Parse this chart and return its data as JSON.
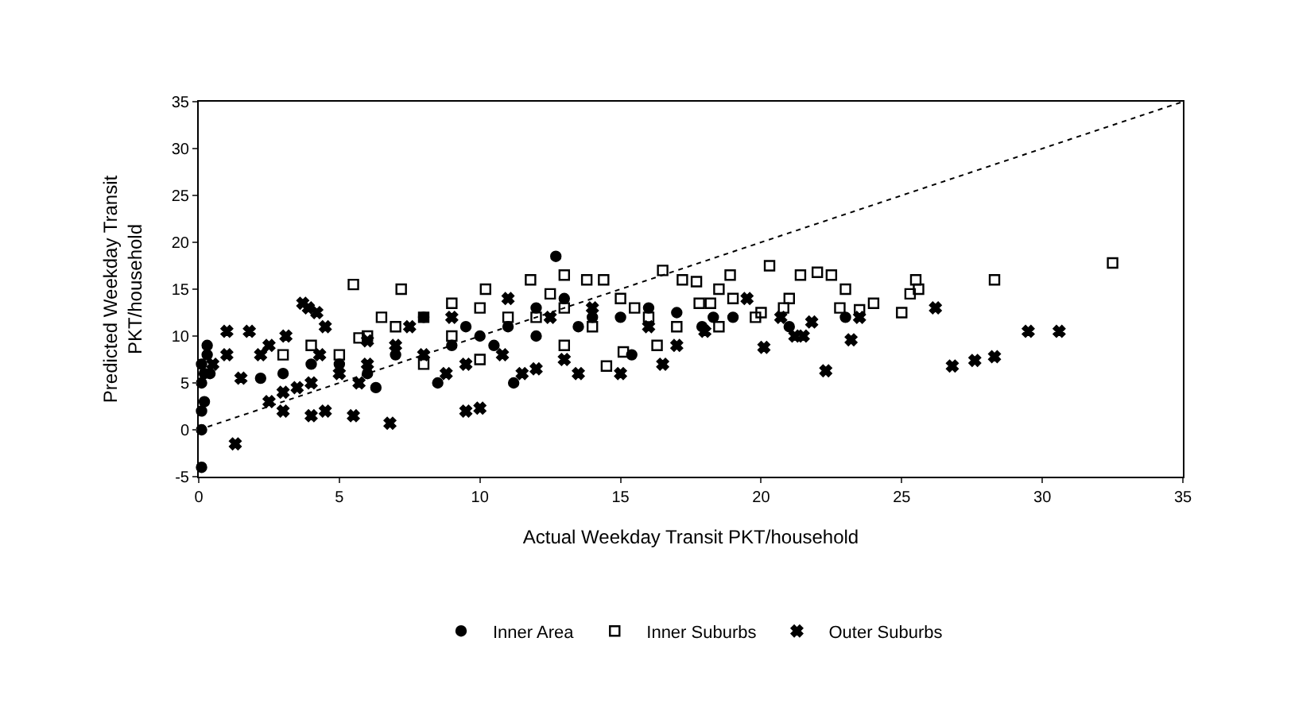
{
  "chart_data": {
    "type": "scatter",
    "xlabel": "Actual Weekday Transit PKT/household",
    "ylabel": "Predicted Weekday Transit\nPKT/household",
    "xlim": [
      0,
      35
    ],
    "ylim": [
      -5,
      35
    ],
    "xticks": [
      0,
      5,
      10,
      15,
      20,
      25,
      30,
      35
    ],
    "yticks": [
      -5,
      0,
      5,
      10,
      15,
      20,
      25,
      30,
      35
    ],
    "legend": "bottom",
    "series": [
      {
        "name": "Inner Area",
        "color": "#000000",
        "marker": "circle",
        "x": [
          0.1,
          0.1,
          0.1,
          0.1,
          0.2,
          0.3,
          0.3,
          0.2,
          0.1,
          0.4,
          6.3,
          8.5,
          11.2,
          12.7,
          15.4,
          17.9,
          18.3,
          13,
          10,
          9,
          7,
          5,
          11,
          14,
          16,
          12,
          19,
          21,
          23,
          8,
          6,
          4,
          3,
          2.2,
          9.5,
          10.5,
          12,
          13.5,
          15,
          17
        ],
        "values": [
          7,
          5,
          2,
          -4,
          6,
          8,
          9,
          3,
          0,
          6,
          4.5,
          5,
          5,
          18.5,
          8,
          11,
          12,
          14,
          10,
          9,
          8,
          7,
          11,
          12,
          13,
          10,
          12,
          11,
          12,
          12,
          6,
          7,
          6,
          5.5,
          11,
          9,
          13,
          11,
          12,
          12.5
        ]
      },
      {
        "name": "Inner Suburbs",
        "color": "#000000",
        "marker": "square",
        "x": [
          5.5,
          7.2,
          10.2,
          11.8,
          13,
          13.8,
          14.4,
          16.5,
          17.2,
          17.7,
          18.5,
          18.9,
          20.3,
          21.4,
          22,
          22.5,
          23,
          19.8,
          20.8,
          21,
          25,
          25.3,
          25.5,
          28.3,
          32.5,
          18.2,
          19,
          15,
          12,
          10,
          8,
          6,
          7,
          9,
          11,
          13,
          14,
          16,
          17,
          18.5,
          20,
          22.8,
          23.5,
          24,
          25.6,
          6.5,
          9,
          12.5,
          15.5,
          17.8,
          4,
          5,
          3,
          8,
          10,
          13,
          16.3,
          14.5,
          15.1,
          5.7
        ],
        "values": [
          15.5,
          15,
          15,
          16,
          16.5,
          16,
          16,
          17,
          16,
          15.8,
          15,
          16.5,
          17.5,
          16.5,
          16.8,
          16.5,
          15,
          12,
          13,
          14,
          12.5,
          14.5,
          16,
          16,
          17.8,
          13.5,
          14,
          14,
          12,
          13,
          12,
          10,
          11,
          10,
          12,
          13,
          11,
          12,
          11,
          11,
          12.5,
          13,
          12.8,
          13.5,
          15,
          12,
          13.5,
          14.5,
          13,
          13.5,
          9,
          8,
          8,
          7,
          7.5,
          9,
          9,
          6.8,
          8.3,
          9.8
        ]
      },
      {
        "name": "Outer Suburbs",
        "color": "#000000",
        "marker": "cross",
        "x": [
          1,
          1.8,
          2.5,
          1.5,
          1.3,
          2.5,
          3,
          3.5,
          3,
          4,
          4.5,
          5.5,
          6.8,
          9.5,
          10,
          3.7,
          3.9,
          4.2,
          4.5,
          4.3,
          4,
          2.2,
          3.1,
          5,
          5.7,
          6,
          7,
          8,
          8.8,
          9.5,
          10.8,
          11.5,
          12,
          13,
          13.5,
          15,
          16.5,
          20.1,
          21.2,
          21.5,
          22.3,
          23.2,
          26.8,
          27.6,
          28.3,
          29.5,
          30.6,
          26.2,
          21.8,
          23.5,
          11,
          12.5,
          14,
          9,
          7.5,
          6,
          16,
          18,
          19.5,
          20.7,
          17,
          1,
          0.5
        ],
        "values": [
          10.5,
          10.5,
          9,
          5.5,
          -1.5,
          3,
          4,
          4.5,
          2,
          1.5,
          2,
          1.5,
          0.7,
          2,
          2.3,
          13.5,
          13,
          12.5,
          11,
          8,
          5,
          8,
          10,
          6,
          5,
          7,
          9,
          8,
          6,
          7,
          8,
          6,
          6.5,
          7.5,
          6,
          6,
          7,
          8.8,
          10,
          10,
          6.3,
          9.6,
          6.8,
          7.4,
          7.8,
          10.5,
          10.5,
          13,
          11.5,
          12,
          14,
          12,
          13,
          12,
          11,
          9.5,
          11,
          10.5,
          14,
          12,
          9,
          8,
          7
        ]
      },
      {
        "type": "line",
        "color": "#000000",
        "line_style": "dotted",
        "marker": "none",
        "x": [
          0,
          35
        ],
        "values": [
          0,
          35
        ]
      }
    ]
  }
}
